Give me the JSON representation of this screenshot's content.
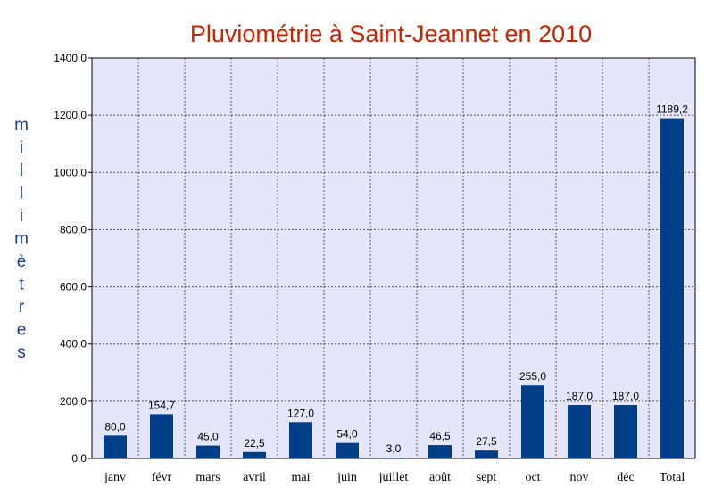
{
  "chart_data": {
    "type": "bar",
    "title": "Pluviométrie à Saint-Jeannet en 2010",
    "ylabel": "millimètres",
    "xlabel": "",
    "categories": [
      "janv",
      "févr",
      "mars",
      "avril",
      "mai",
      "juin",
      "juillet",
      "août",
      "sept",
      "oct",
      "nov",
      "déc",
      "Total"
    ],
    "values": [
      80.0,
      154.7,
      45.0,
      22.5,
      127.0,
      54.0,
      3.0,
      46.5,
      27.5,
      255.0,
      187.0,
      187.0,
      1189.2
    ],
    "value_labels": [
      "80,0",
      "154,7",
      "45,0",
      "22,5",
      "127,0",
      "54,0",
      "3,0",
      "46,5",
      "27,5",
      "255,0",
      "187,0",
      "187,0",
      "1189,2"
    ],
    "ylim": [
      0,
      1400
    ],
    "yticks": [
      0,
      200,
      400,
      600,
      800,
      1000,
      1200,
      1400
    ],
    "ytick_labels": [
      "0,0",
      "200,0",
      "400,0",
      "600,0",
      "800,0",
      "1000,0",
      "1200,0",
      "1400,0"
    ],
    "grid": true,
    "legend": "none",
    "colors": {
      "bar": "#003f87",
      "plot_background": "#e6e6fa",
      "title": "#cc2200",
      "ylabel": "#1a3d8c",
      "grid": "#555555"
    }
  }
}
